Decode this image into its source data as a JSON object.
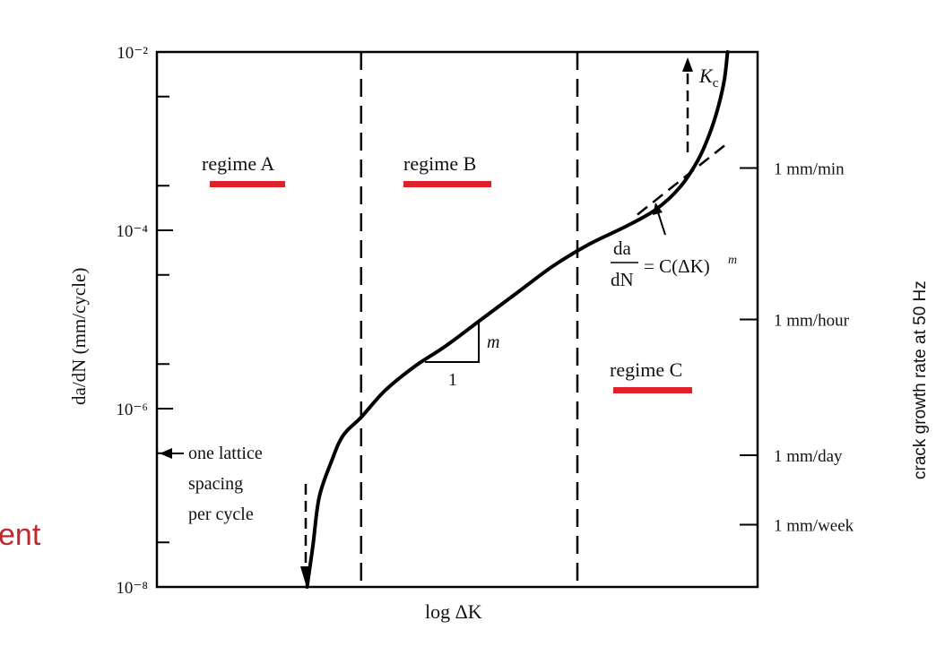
{
  "slide_fragment": {
    "text": "ent",
    "color": "#c0282d"
  },
  "chart_data": {
    "type": "line",
    "xlabel": "log ΔK",
    "ylabel": "da/dN (mm/cycle)",
    "y_scale": "log",
    "ylim": [
      1e-08,
      0.01
    ],
    "y_ticks": [
      {
        "value": 1e-08,
        "label": "10⁻⁸"
      },
      {
        "value": 1e-06,
        "label": "10⁻⁶"
      },
      {
        "value": 0.0001,
        "label": "10⁻⁴"
      },
      {
        "value": 0.01,
        "label": "10⁻²"
      }
    ],
    "right_axis": {
      "label": "crack growth rate at 50 Hz",
      "ticks": [
        {
          "value": 0.0005,
          "label": "1 mm/min"
        },
        {
          "value": 1e-05,
          "label": "1 mm/hour"
        },
        {
          "value": 3e-07,
          "label": "1 mm/day"
        },
        {
          "value": 5e-08,
          "label": "1 mm/week"
        }
      ]
    },
    "xlim": [
      0,
      1
    ],
    "regime_boundaries": [
      0.34,
      0.7
    ],
    "regimes": [
      {
        "label": "regime A",
        "underline_color": "#e0202a"
      },
      {
        "label": "regime B",
        "underline_color": "#e0202a"
      },
      {
        "label": "regime C",
        "underline_color": "#e0202a"
      }
    ],
    "series": [
      {
        "x": [
          0.25,
          0.26,
          0.27,
          0.29,
          0.31,
          0.34,
          0.38,
          0.43,
          0.48,
          0.54,
          0.6,
          0.66,
          0.72,
          0.78,
          0.83,
          0.87,
          0.9,
          0.92,
          0.935,
          0.945,
          0.95
        ],
        "y": [
          1e-08,
          3e-08,
          1e-07,
          2.5e-07,
          5e-07,
          8e-07,
          1.6e-06,
          3e-06,
          5e-06,
          1e-05,
          2e-05,
          4e-05,
          7e-05,
          0.00011,
          0.00017,
          0.0003,
          0.0006,
          0.0012,
          0.0025,
          0.005,
          0.01
        ]
      }
    ],
    "paris_law_line": {
      "x": [
        0.8,
        1.0
      ],
      "y": [
        0.00015,
        0.001
      ]
    },
    "annotations": {
      "threshold_label": "one lattice spacing per cycle",
      "threshold_lines": [
        "one lattice",
        "spacing",
        "per cycle"
      ],
      "threshold_value": 3e-07,
      "kc_label": "K",
      "kc_subscript": "c",
      "slope_run": "1",
      "slope_rise": "m",
      "paris_law": {
        "numerator": "da",
        "denominator": "dN",
        "rhs": "= C(ΔK)",
        "exponent": "m"
      }
    },
    "grid": false
  }
}
